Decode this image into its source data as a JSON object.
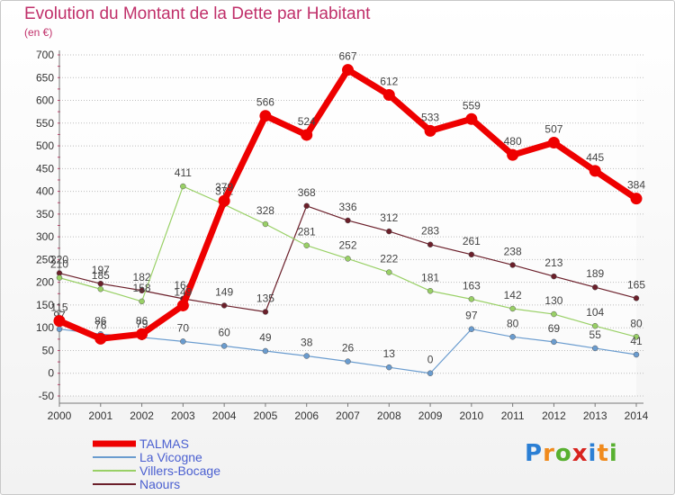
{
  "page": {
    "title": "Evolution du Montant de la Dette par Habitant",
    "subtitle": "(en €)",
    "logo": "Proxiti"
  },
  "chart_data": {
    "type": "line",
    "title": "Evolution du Montant de la Dette par Habitant",
    "ylabel": "(en €)",
    "xlabel": "",
    "x": [
      2000,
      2001,
      2002,
      2003,
      2004,
      2005,
      2006,
      2007,
      2008,
      2009,
      2010,
      2011,
      2012,
      2013,
      2014
    ],
    "ylim": [
      -50,
      700
    ],
    "yticks": [
      -50,
      0,
      50,
      100,
      150,
      200,
      250,
      300,
      350,
      400,
      450,
      500,
      550,
      600,
      650,
      700
    ],
    "grid": "horizontal",
    "legend": "bottom-left",
    "series": [
      {
        "name": "Naours",
        "color": "#6b1f2a",
        "values": [
          220,
          197,
          182,
          164,
          149,
          135,
          368,
          336,
          312,
          283,
          261,
          238,
          213,
          189,
          165
        ]
      },
      {
        "name": "Villers-Bocage",
        "color": "#99d066",
        "values": [
          210,
          185,
          158,
          411,
          371,
          328,
          281,
          252,
          222,
          181,
          163,
          142,
          130,
          104,
          80
        ]
      },
      {
        "name": "La Vicogne",
        "color": "#6a9ccf",
        "values": [
          97,
          86,
          79,
          70,
          60,
          49,
          38,
          26,
          13,
          0,
          97,
          80,
          69,
          55,
          41
        ]
      },
      {
        "name": "TALMAS",
        "color": "#ee0000",
        "values": [
          115,
          76,
          86,
          149,
          379,
          566,
          524,
          667,
          612,
          533,
          559,
          480,
          507,
          445,
          384
        ]
      }
    ]
  }
}
